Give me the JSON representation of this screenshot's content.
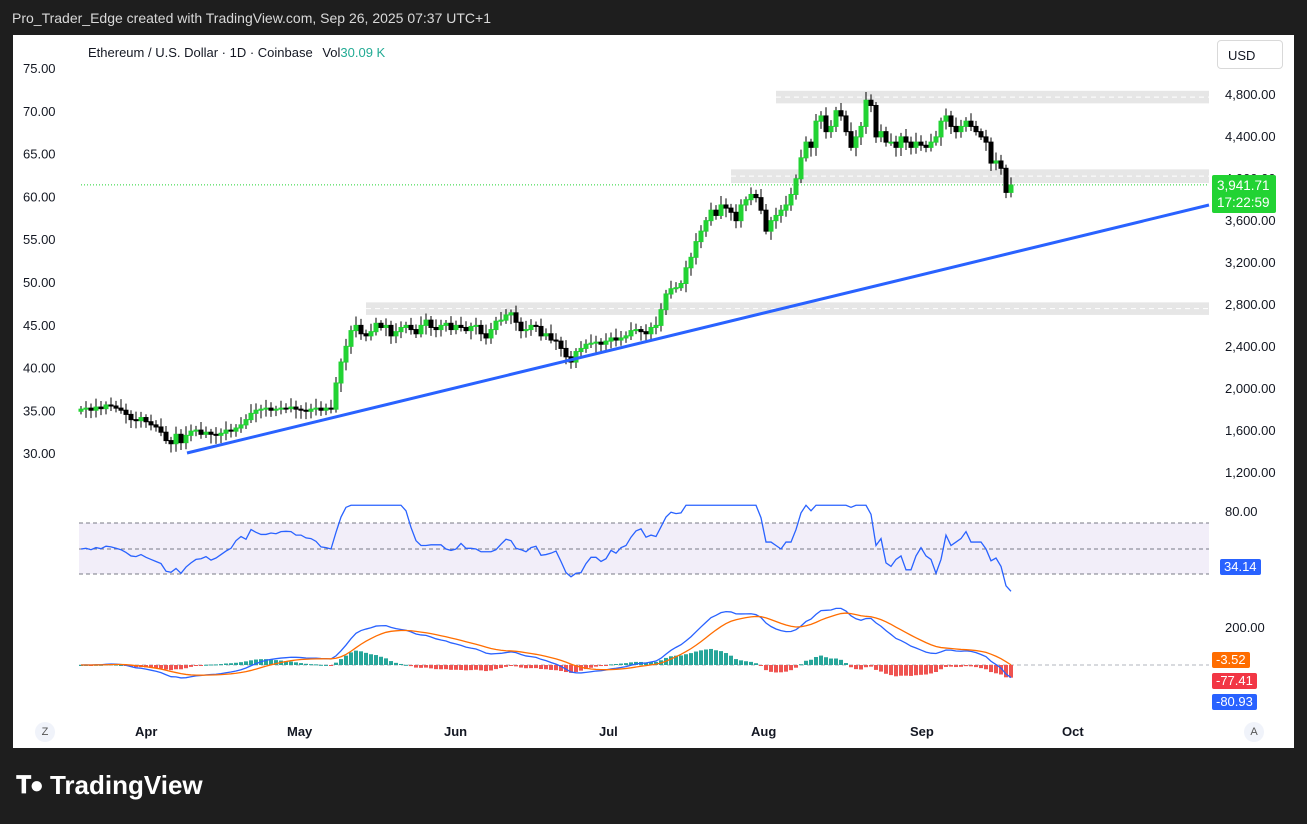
{
  "header": {
    "attribution": "Pro_Trader_Edge created with TradingView.com, Sep 26, 2025 07:37 UTC+1"
  },
  "legend": {
    "symbol": "Ethereum / U.S. Dollar · 1D · Coinbase",
    "vol_label": "Vol",
    "vol_value": "30.09 K"
  },
  "currency_button": "USD",
  "price_badge": {
    "price": "3,941.71",
    "countdown": "17:22:59"
  },
  "rsi_badge": "34.14",
  "macd_badges": [
    "-3.52",
    "-77.41",
    "-80.93"
  ],
  "corner_left": "Z",
  "corner_right": "A",
  "brand": "TradingView",
  "colors": {
    "up": "#22d333",
    "down": "#000000",
    "trendline": "#2962ff",
    "rsi_line": "#2962ff",
    "macd_line": "#2962ff",
    "signal_line": "#ff6d00",
    "hist_up": "#26a69a",
    "hist_down": "#ef5350"
  },
  "chart_data": {
    "type": "candlestick",
    "ticks_left": [
      "75.00",
      "70.00",
      "65.00",
      "60.00",
      "55.00",
      "50.00",
      "45.00",
      "40.00",
      "35.00",
      "30.00"
    ],
    "ticks_right": [
      "4,800.00",
      "4,400.00",
      "4,000.00",
      "3,600.00",
      "3,200.00",
      "2,800.00",
      "2,400.00",
      "2,000.00",
      "1,600.00",
      "1,200.00"
    ],
    "x_labels": [
      "Apr",
      "May",
      "Jun",
      "Jul",
      "Aug",
      "Sep",
      "Oct"
    ],
    "ylim": [
      1000,
      5000
    ],
    "last_price": 3941.71,
    "close_series": [
      1800,
      1810,
      1790,
      1820,
      1805,
      1840,
      1830,
      1810,
      1790,
      1750,
      1700,
      1690,
      1720,
      1680,
      1650,
      1630,
      1580,
      1500,
      1470,
      1560,
      1480,
      1550,
      1590,
      1600,
      1560,
      1580,
      1560,
      1550,
      1570,
      1600,
      1590,
      1620,
      1650,
      1700,
      1760,
      1790,
      1800,
      1810,
      1790,
      1800,
      1810,
      1805,
      1820,
      1800,
      1790,
      1780,
      1800,
      1810,
      1790,
      1810,
      1800,
      2050,
      2250,
      2400,
      2550,
      2600,
      2520,
      2500,
      2540,
      2620,
      2580,
      2600,
      2500,
      2540,
      2580,
      2600,
      2560,
      2520,
      2600,
      2650,
      2580,
      2560,
      2600,
      2620,
      2560,
      2600,
      2580,
      2550,
      2590,
      2600,
      2520,
      2480,
      2560,
      2640,
      2650,
      2700,
      2720,
      2630,
      2550,
      2560,
      2600,
      2590,
      2500,
      2520,
      2460,
      2450,
      2380,
      2300,
      2250,
      2350,
      2380,
      2420,
      2430,
      2440,
      2420,
      2450,
      2480,
      2460,
      2480,
      2500,
      2550,
      2560,
      2540,
      2520,
      2580,
      2600,
      2750,
      2900,
      2950,
      2960,
      3000,
      3150,
      3250,
      3400,
      3500,
      3600,
      3700,
      3650,
      3750,
      3720,
      3680,
      3600,
      3750,
      3800,
      3850,
      3820,
      3700,
      3500,
      3600,
      3650,
      3700,
      3750,
      3850,
      4000,
      4200,
      4350,
      4300,
      4550,
      4600,
      4450,
      4500,
      4650,
      4600,
      4450,
      4300,
      4400,
      4500,
      4750,
      4700,
      4400,
      4450,
      4350,
      4350,
      4300,
      4400,
      4350,
      4300,
      4350,
      4320,
      4300,
      4350,
      4400,
      4550,
      4600,
      4500,
      4450,
      4500,
      4550,
      4500,
      4450,
      4400,
      4350,
      4150,
      4170,
      4100,
      3870,
      3941
    ],
    "trendline": {
      "from": [
        "Apr 9",
        1430
      ],
      "to": [
        "Oct 3",
        3880
      ]
    },
    "zones": [
      [
        4720,
        4840
      ],
      [
        3960,
        4090
      ],
      [
        2700,
        2820
      ]
    ],
    "rsi": {
      "upper": 70,
      "lower": 30,
      "middle": 50,
      "last": 34.14,
      "tick": "80.00"
    },
    "macd": {
      "macd": -80.93,
      "signal": -77.41,
      "histogram": -3.52,
      "tick": "200.00"
    }
  }
}
